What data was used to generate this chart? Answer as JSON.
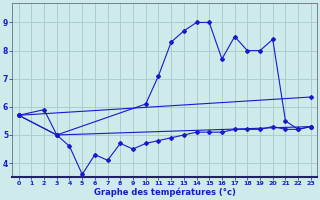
{
  "bg_color": "#ceeaea",
  "grid_color": "#aacece",
  "line_color": "#1a1acc",
  "xlabel": "Graphe des températures (°c)",
  "xlim": [
    -0.5,
    23.5
  ],
  "ylim": [
    3.5,
    9.7
  ],
  "yticks": [
    4,
    5,
    6,
    7,
    8,
    9
  ],
  "xticks": [
    0,
    1,
    2,
    3,
    4,
    5,
    6,
    7,
    8,
    9,
    10,
    11,
    12,
    13,
    14,
    15,
    16,
    17,
    18,
    19,
    20,
    21,
    22,
    23
  ],
  "series": [
    {
      "x": [
        0,
        2,
        3,
        10,
        11,
        12,
        13,
        14,
        15,
        16,
        17,
        18,
        19,
        20,
        21,
        22,
        23
      ],
      "y": [
        5.7,
        5.9,
        5.0,
        6.1,
        7.1,
        8.3,
        8.7,
        9.0,
        9.0,
        7.7,
        8.5,
        8.0,
        8.0,
        8.4,
        5.5,
        5.2,
        5.3
      ]
    },
    {
      "x": [
        0,
        3,
        4,
        5,
        6,
        7,
        8,
        9,
        10,
        11,
        12,
        13,
        14,
        15,
        16,
        17,
        18,
        19,
        20,
        21,
        22,
        23
      ],
      "y": [
        5.7,
        5.0,
        4.6,
        3.6,
        4.3,
        4.1,
        4.7,
        4.5,
        4.7,
        4.8,
        4.9,
        5.0,
        5.1,
        5.1,
        5.1,
        5.2,
        5.2,
        5.2,
        5.3,
        5.2,
        5.2,
        5.3
      ]
    },
    {
      "x": [
        0,
        3,
        23
      ],
      "y": [
        5.7,
        5.0,
        5.3
      ]
    },
    {
      "x": [
        0,
        23
      ],
      "y": [
        5.7,
        6.35
      ]
    }
  ]
}
